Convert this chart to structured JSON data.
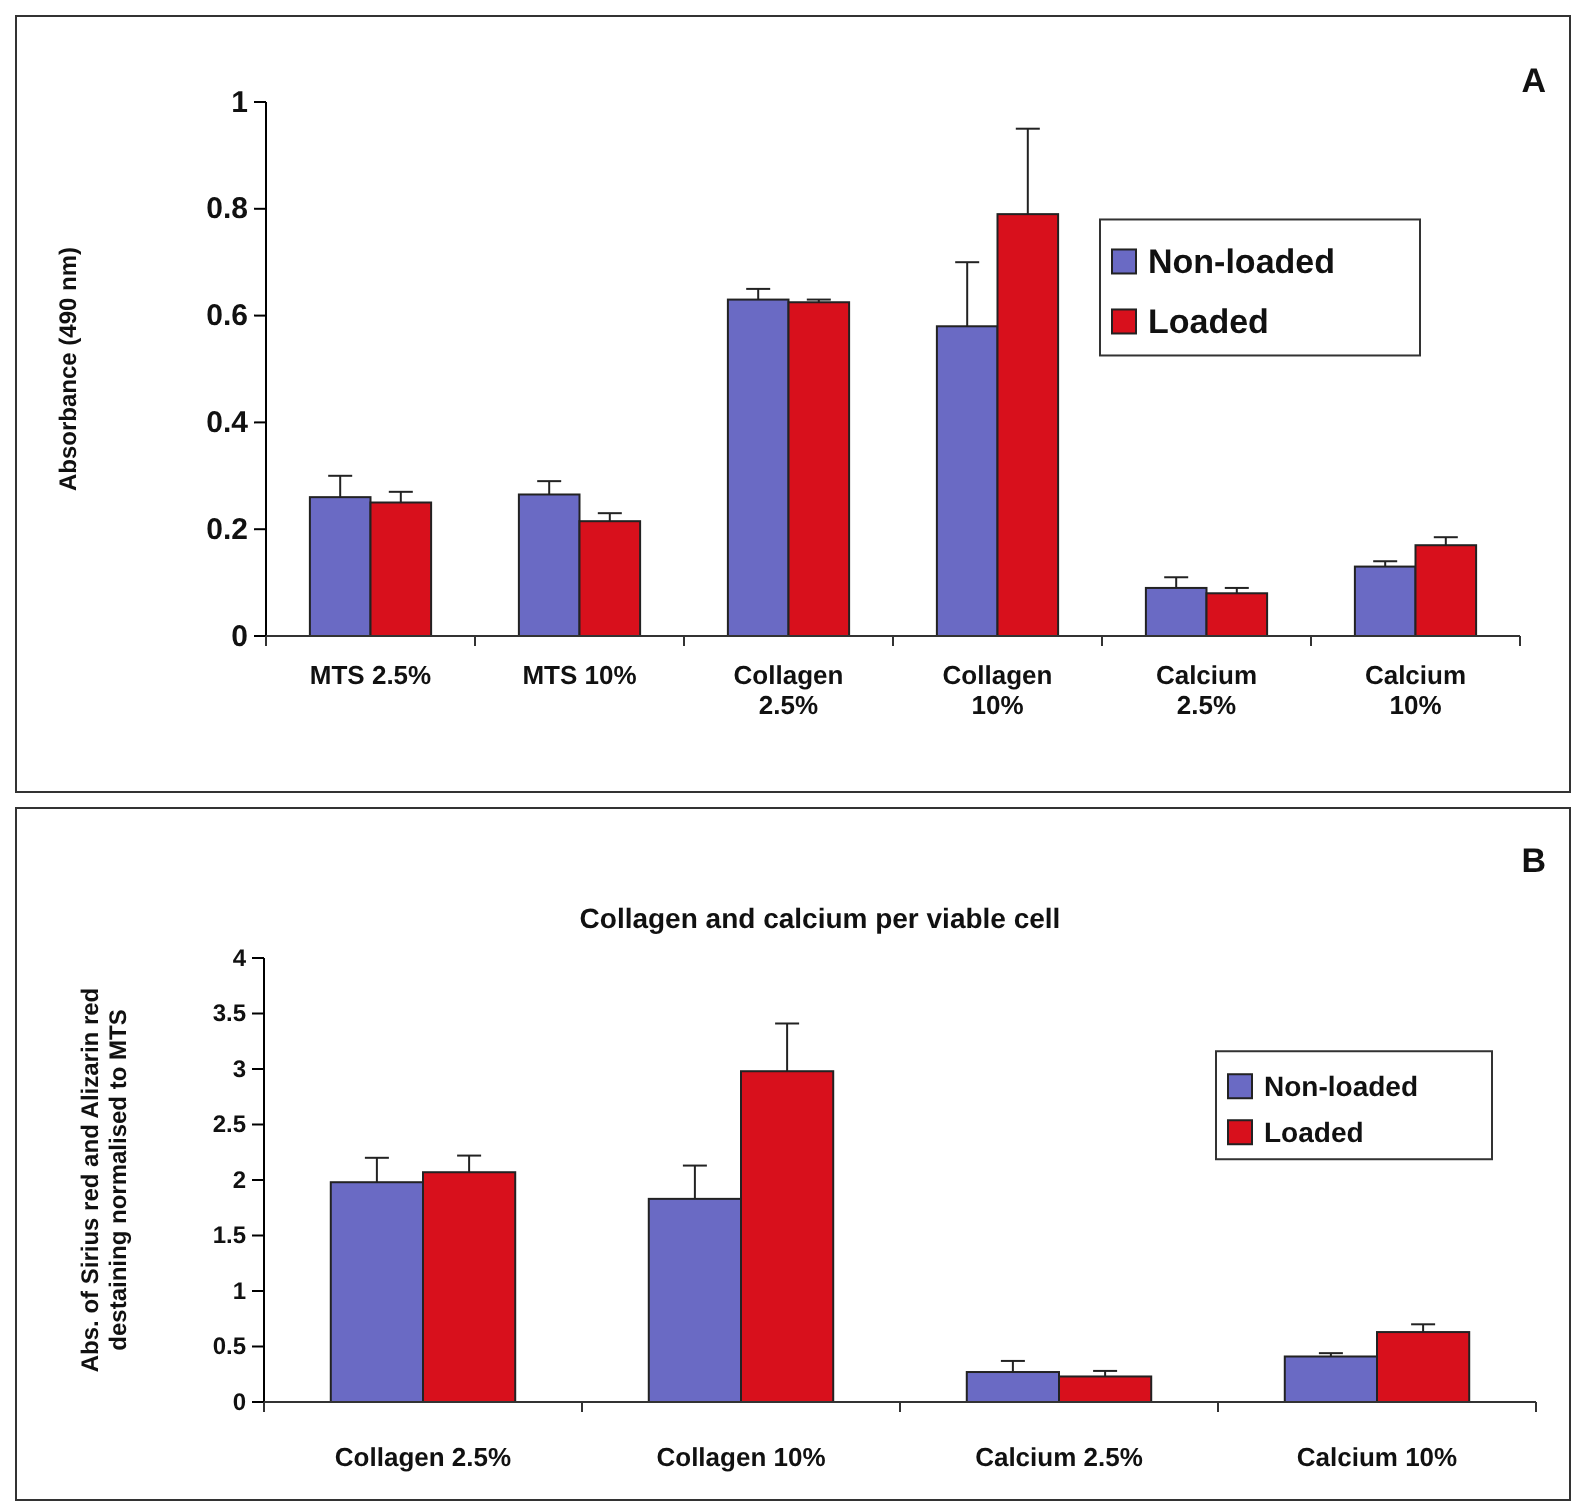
{
  "chart_data": [
    {
      "type": "bar",
      "ylabel": "Absorbance (490 nm)",
      "annotations": [
        "A"
      ],
      "categories": [
        "MTS 2.5%",
        "MTS 10%",
        "Collagen 2.5%",
        "Collagen 10%",
        "Calcium 2.5%",
        "Calcium 10%"
      ],
      "series": [
        {
          "name": "Non-loaded",
          "color": "#6a6ac4",
          "values": [
            0.26,
            0.265,
            0.63,
            0.58,
            0.09,
            0.13
          ],
          "errors": [
            [
              0.26,
              0.3
            ],
            [
              0.265,
              0.29
            ],
            [
              0.63,
              0.65
            ],
            [
              0.58,
              0.7
            ],
            [
              0.09,
              0.11
            ],
            [
              0.13,
              0.14
            ]
          ]
        },
        {
          "name": "Loaded",
          "color": "#d8101c",
          "values": [
            0.25,
            0.215,
            0.625,
            0.79,
            0.08,
            0.17
          ],
          "errors": [
            [
              0.25,
              0.27
            ],
            [
              0.215,
              0.23
            ],
            [
              0.625,
              0.63
            ],
            [
              0.79,
              0.95
            ],
            [
              0.08,
              0.09
            ],
            [
              0.17,
              0.185
            ]
          ]
        }
      ],
      "ylim": [
        0,
        1
      ],
      "yticks": [
        0,
        0.2,
        0.4,
        0.6,
        0.8,
        1
      ],
      "legend": "right"
    },
    {
      "type": "bar",
      "title": "Collagen and calcium per viable cell",
      "ylabel": "Abs. of Sirius red and Alizarin red destaining normalised to MTS",
      "annotations": [
        "B"
      ],
      "categories": [
        "Collagen 2.5%",
        "Collagen 10%",
        "Calcium 2.5%",
        "Calcium 10%"
      ],
      "series": [
        {
          "name": "Non-loaded",
          "color": "#6a6ac4",
          "values": [
            1.98,
            1.83,
            0.27,
            0.41
          ],
          "errors": [
            [
              1.98,
              2.2
            ],
            [
              1.83,
              2.13
            ],
            [
              0.27,
              0.37
            ],
            [
              0.41,
              0.44
            ]
          ]
        },
        {
          "name": "Loaded",
          "color": "#d8101c",
          "values": [
            2.07,
            2.98,
            0.23,
            0.63
          ],
          "errors": [
            [
              2.07,
              2.22
            ],
            [
              2.98,
              3.41
            ],
            [
              0.23,
              0.28
            ],
            [
              0.63,
              0.7
            ]
          ]
        }
      ],
      "ylim": [
        0,
        4
      ],
      "yticks": [
        0,
        0.5,
        1,
        1.5,
        2,
        2.5,
        3,
        3.5,
        4
      ],
      "legend": "right"
    }
  ]
}
